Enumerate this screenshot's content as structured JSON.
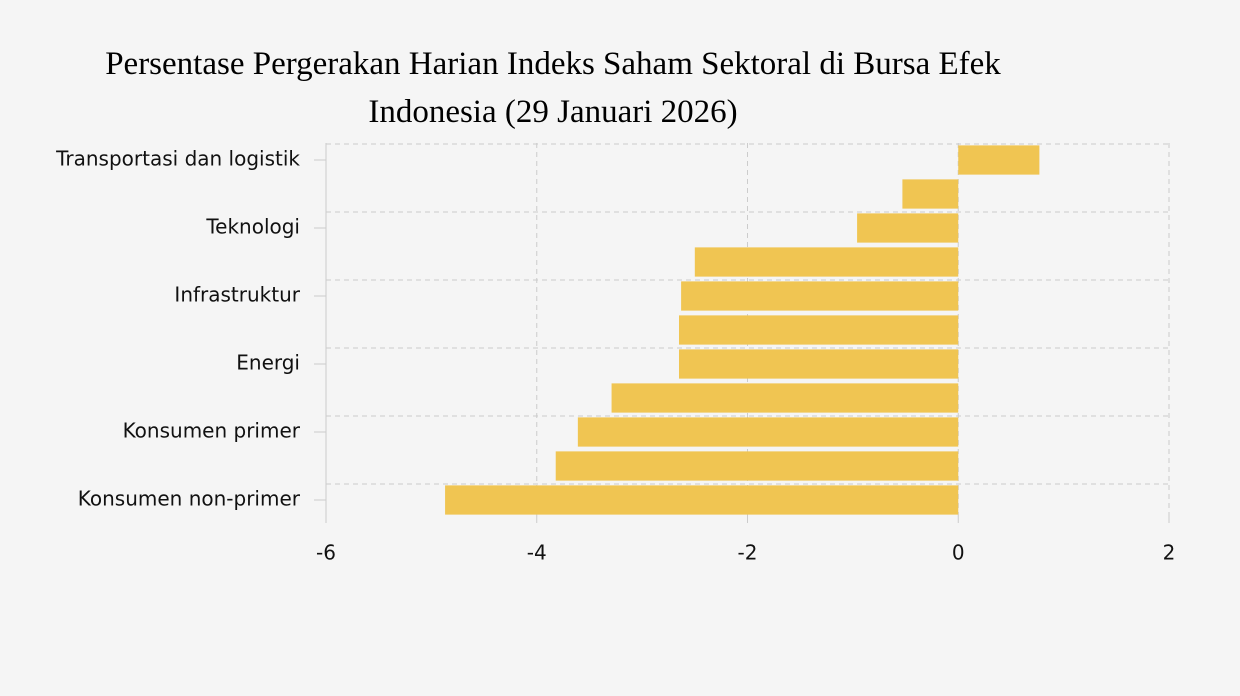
{
  "chart_data": {
    "type": "barh",
    "title": "Persentase Pergerakan Harian Indeks Saham Sektoral di Bursa Efek Indonesia (29 Januari 2026)",
    "categories": [
      "Transportasi dan logistik",
      null,
      "Teknologi",
      null,
      "Infrastruktur",
      null,
      "Energi",
      null,
      "Konsumen primer",
      null,
      "Konsumen non-primer"
    ],
    "values": [
      0.77,
      -0.53,
      -0.96,
      -2.5,
      -2.63,
      -2.65,
      -2.65,
      -3.29,
      -3.61,
      -3.82,
      -4.87
    ],
    "color": "#f0c552",
    "xlim": [
      -6,
      2
    ],
    "xticks": [
      -6,
      -4,
      -2,
      0,
      2
    ],
    "grid": true
  }
}
